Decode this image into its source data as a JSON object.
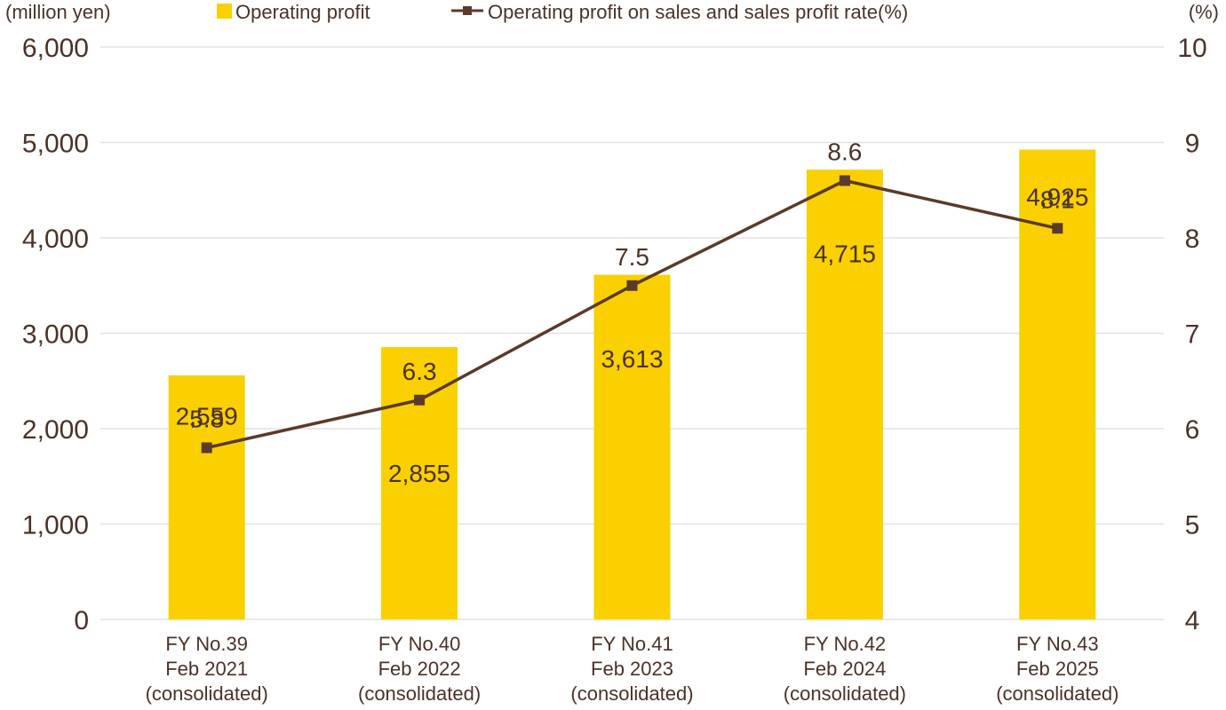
{
  "chart_data": {
    "type": "bar",
    "categories": [
      [
        "FY No.39",
        "Feb 2021",
        "(consolidated)"
      ],
      [
        "FY No.40",
        "Feb 2022",
        "(consolidated)"
      ],
      [
        "FY No.41",
        "Feb 2023",
        "(consolidated)"
      ],
      [
        "FY No.42",
        "Feb 2024",
        "(consolidated)"
      ],
      [
        "FY No.43",
        "Feb 2025",
        "(consolidated)"
      ]
    ],
    "series": [
      {
        "name": "Operating profit",
        "type": "bar",
        "axis": "left",
        "values": [
          2559,
          2855,
          3613,
          4715,
          4925
        ],
        "labels": [
          "2,559",
          "2,855",
          "3,613",
          "4,715",
          "4,925"
        ]
      },
      {
        "name": "Operating profit on sales and sales profit rate(%)",
        "type": "line",
        "axis": "right",
        "values": [
          5.8,
          6.3,
          7.5,
          8.6,
          8.1
        ],
        "labels": [
          "5.8",
          "6.3",
          "7.5",
          "8.6",
          "8.1"
        ]
      }
    ],
    "left_axis": {
      "unit": "(million yen)",
      "ylim": [
        0,
        6000
      ],
      "ticks": [
        0,
        1000,
        2000,
        3000,
        4000,
        5000,
        6000
      ],
      "tick_labels": [
        "0",
        "1,000",
        "2,000",
        "3,000",
        "4,000",
        "5,000",
        "6,000"
      ]
    },
    "right_axis": {
      "unit": "(%)",
      "ylim": [
        4,
        10
      ],
      "ticks": [
        4,
        5,
        6,
        7,
        8,
        9,
        10
      ],
      "tick_labels": [
        "4",
        "5",
        "6",
        "7",
        "8",
        "9",
        "10"
      ]
    },
    "grid": true,
    "legend_position": "top",
    "colors": {
      "bar": "#fad000",
      "line": "#5a3a2a",
      "text": "#4a3228",
      "grid": "#e2e2e2"
    }
  }
}
